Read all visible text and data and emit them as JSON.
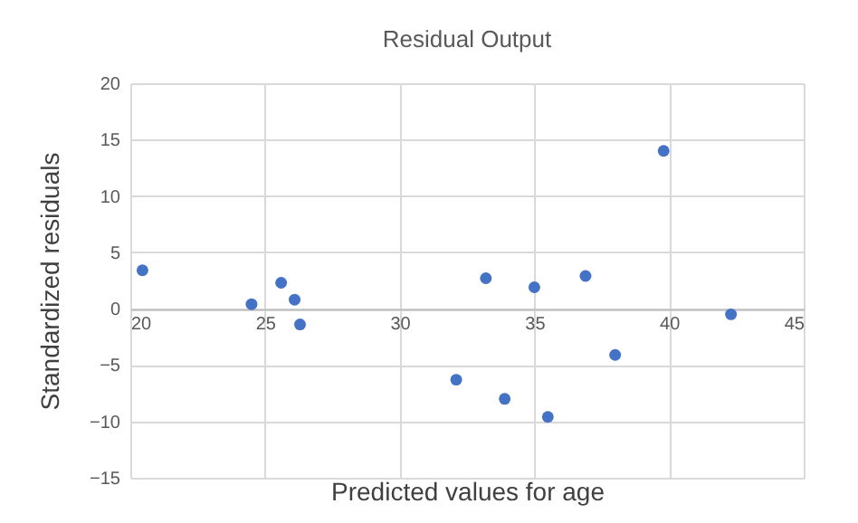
{
  "chart_data": {
    "type": "scatter",
    "title": "Residual Output",
    "xlabel": "Predicted values for age",
    "ylabel": "Standardized residuals",
    "x": [
      20.45,
      24.5,
      25.6,
      26.1,
      26.3,
      32.1,
      33.2,
      33.9,
      35.0,
      35.5,
      36.9,
      38.0,
      39.8,
      42.3
    ],
    "series": [
      {
        "color": "#4472c4",
        "values": [
          3.4,
          0.4,
          2.3,
          0.8,
          -1.4,
          -6.3,
          2.7,
          -8.0,
          1.9,
          -9.6,
          2.9,
          -4.1,
          14.0,
          -0.5
        ]
      }
    ],
    "xlim": [
      20,
      45
    ],
    "xticks": [
      20,
      25,
      30,
      35,
      40,
      45
    ],
    "ylim": [
      -15,
      20
    ],
    "yticks": [
      -15,
      -10,
      -5,
      0,
      5,
      10,
      15,
      20
    ],
    "grid": true,
    "marker": "circle"
  }
}
